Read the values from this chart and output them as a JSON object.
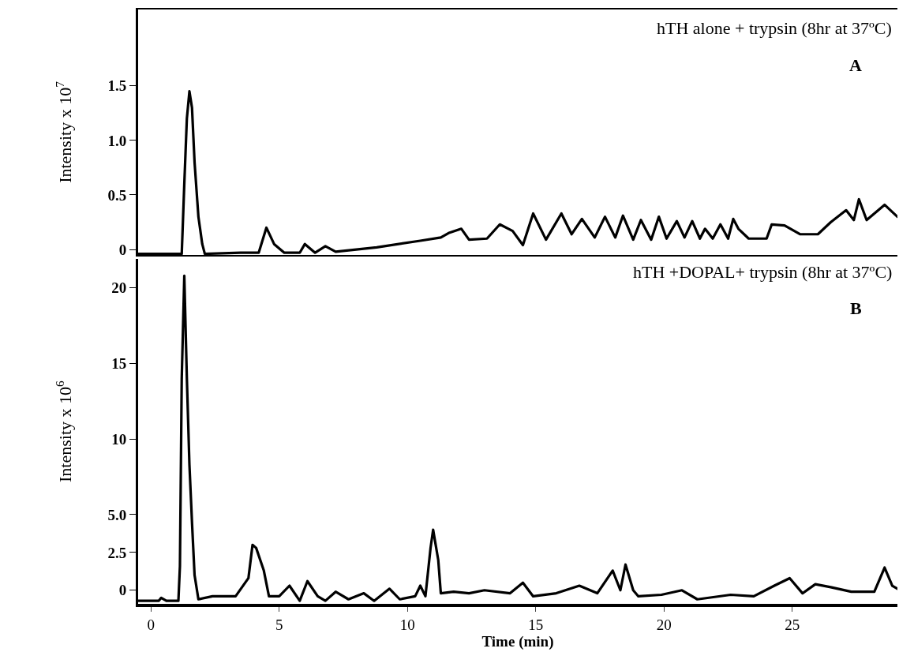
{
  "chart_data": [
    {
      "type": "line",
      "ylabel": "Intensity x 10$^{7}$",
      "annotations": [
        "hTH alone + trypsin (8hr at 37ºC)",
        "A"
      ],
      "color": "#000000",
      "x": [
        -0.5,
        0.8,
        1.2,
        1.3,
        1.4,
        1.5,
        1.6,
        1.7,
        1.85,
        2.0,
        2.1,
        3.5,
        4.2,
        4.5,
        4.8,
        5.2,
        5.8,
        6.0,
        6.4,
        6.8,
        7.2,
        8.8,
        10.5,
        11.3,
        11.6,
        12.1,
        12.4,
        13.1,
        13.6,
        14.1,
        14.5,
        14.9,
        15.4,
        16.0,
        16.4,
        16.8,
        17.3,
        17.7,
        18.1,
        18.4,
        18.8,
        19.1,
        19.5,
        19.8,
        20.1,
        20.5,
        20.8,
        21.1,
        21.4,
        21.6,
        21.9,
        22.2,
        22.5,
        22.7,
        22.9,
        23.3,
        24.0,
        24.2,
        24.7,
        25.3,
        26.0,
        26.5,
        27.1,
        27.4,
        27.6,
        27.9,
        28.6,
        29.1
      ],
      "values": [
        -0.04,
        -0.04,
        -0.04,
        0.6,
        1.2,
        1.45,
        1.3,
        0.8,
        0.3,
        0.05,
        -0.04,
        -0.03,
        -0.03,
        0.2,
        0.05,
        -0.03,
        -0.03,
        0.05,
        -0.03,
        0.03,
        -0.02,
        0.02,
        0.08,
        0.11,
        0.15,
        0.19,
        0.09,
        0.1,
        0.23,
        0.17,
        0.04,
        0.33,
        0.09,
        0.33,
        0.14,
        0.28,
        0.11,
        0.3,
        0.11,
        0.31,
        0.09,
        0.27,
        0.09,
        0.3,
        0.1,
        0.26,
        0.11,
        0.26,
        0.1,
        0.19,
        0.1,
        0.23,
        0.1,
        0.28,
        0.19,
        0.1,
        0.1,
        0.23,
        0.22,
        0.14,
        0.14,
        0.25,
        0.36,
        0.27,
        0.46,
        0.27,
        0.41,
        0.3
      ],
      "xlim": [
        -0.5,
        29.1
      ],
      "ylim": [
        -0.05,
        2.2
      ],
      "yticks": [
        0,
        0.5,
        {
          "value": 1,
          "label": "1.0"
        },
        1.5
      ],
      "xticks": [
        0,
        5,
        10,
        15,
        20,
        25
      ],
      "tick_labels": "y"
    },
    {
      "type": "line",
      "ylabel": "Intensity x 10$^{6}$",
      "xlabel": "Time (min)",
      "annotations": [
        "hTH +DOPAL+ trypsin (8hr at 37ºC)",
        "B"
      ],
      "color": "#000000",
      "x": [
        -0.5,
        0.3,
        0.4,
        0.6,
        1.07,
        1.13,
        1.2,
        1.3,
        1.4,
        1.5,
        1.6,
        1.7,
        1.85,
        2.4,
        3.3,
        3.8,
        3.96,
        4.1,
        4.4,
        4.6,
        5.0,
        5.4,
        5.8,
        6.1,
        6.5,
        6.8,
        7.2,
        7.7,
        8.3,
        8.7,
        9.3,
        9.7,
        10.3,
        10.5,
        10.7,
        10.9,
        11.0,
        11.2,
        11.3,
        11.8,
        12.4,
        13.0,
        14.0,
        14.5,
        14.9,
        15.8,
        16.7,
        17.4,
        18.0,
        18.3,
        18.5,
        18.8,
        19.0,
        19.9,
        20.7,
        21.3,
        22.6,
        23.5,
        24.3,
        24.9,
        25.4,
        25.9,
        26.5,
        27.3,
        28.2,
        28.6,
        28.9,
        29.1
      ],
      "values": [
        -0.7,
        -0.7,
        -0.5,
        -0.7,
        -0.7,
        1.6,
        14,
        20.8,
        14,
        8.3,
        4.5,
        1.0,
        -0.6,
        -0.4,
        -0.4,
        0.8,
        3.0,
        2.8,
        1.3,
        -0.4,
        -0.4,
        0.3,
        -0.7,
        0.6,
        -0.4,
        -0.7,
        -0.1,
        -0.6,
        -0.2,
        -0.7,
        0.1,
        -0.6,
        -0.4,
        0.3,
        -0.4,
        2.8,
        4.0,
        2.0,
        -0.2,
        -0.1,
        -0.2,
        0,
        -0.2,
        0.5,
        -0.4,
        -0.2,
        0.3,
        -0.2,
        1.3,
        0,
        1.7,
        0,
        -0.4,
        -0.3,
        0,
        -0.6,
        -0.3,
        -0.4,
        0.3,
        0.8,
        -0.2,
        0.4,
        0.2,
        -0.1,
        -0.1,
        1.5,
        0.3,
        0.1
      ],
      "xlim": [
        -0.5,
        29.1
      ],
      "ylim": [
        -0.9,
        21.9
      ],
      "yticks": [
        0,
        2.5,
        {
          "value": 5,
          "label": "5.0"
        },
        10,
        15,
        20
      ],
      "xticks": [
        0,
        5,
        10,
        15,
        20,
        25
      ]
    }
  ]
}
